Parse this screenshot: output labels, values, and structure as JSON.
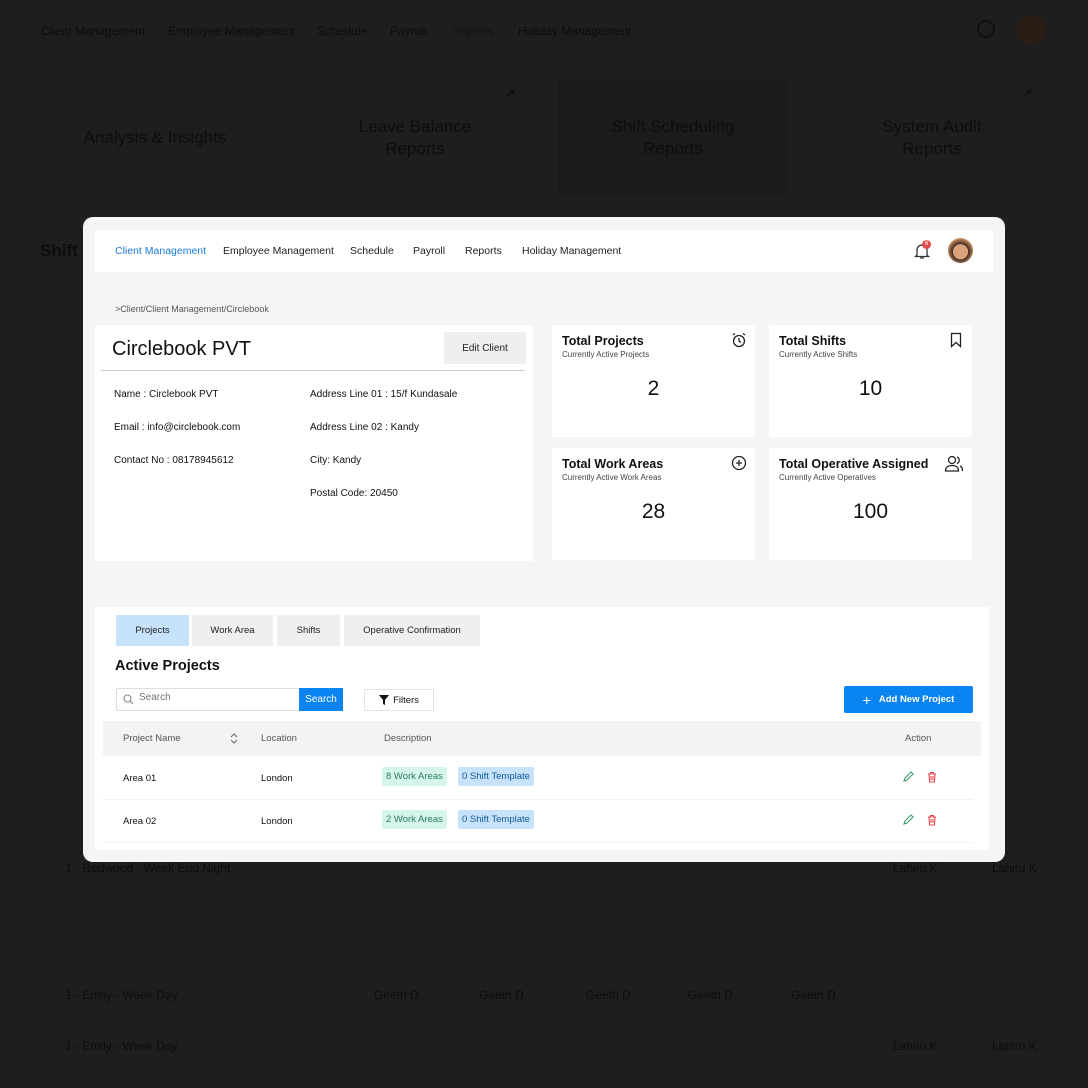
{
  "background": {
    "nav": [
      "Client Management",
      "Employee Management",
      "Schedule",
      "Payroll",
      "Reports",
      "Holiday Management"
    ],
    "report_cards": [
      "Analysis & Insights",
      "Leave Balance Reports",
      "Shift Scheduling Reports",
      "System Audit Reports"
    ],
    "page_title": "Shift",
    "rows": [
      {
        "label": "1 - Redwood - Week End Night",
        "cells": [
          "-",
          "-",
          "-",
          "-",
          "-",
          "Lahiru K",
          "Lahiru K"
        ]
      },
      {
        "label": "1 - Emily - Week Day",
        "cells": [
          "Geeth D",
          "Geeth D",
          "Geeth D",
          "Geeth D",
          "Geeth D",
          "-",
          "-"
        ]
      },
      {
        "label": "1 - Emily - Week Day",
        "cells": [
          "-",
          "-",
          "-",
          "-",
          "-",
          "Lahiru K",
          "Lahiru K"
        ]
      }
    ]
  },
  "modal": {
    "nav": {
      "items": [
        "Client Management",
        "Employee Management",
        "Schedule",
        "Payroll",
        "Reports",
        "Holiday Management"
      ],
      "active": "Client Management",
      "notification_count": "6"
    },
    "breadcrumb": ">Client/Client Management/Circlebook",
    "client": {
      "name": "Circlebook PVT",
      "edit_label": "Edit Client",
      "fields": {
        "name": "Name : Circlebook PVT",
        "email": "Email : info@circlebook.com",
        "contact": "Contact No : 08178945612",
        "address1": "Address Line 01 : 15/f Kundasale",
        "address2": "Address Line 02 : Kandy",
        "city": "City: Kandy",
        "postal": "Postal Code: 20450"
      }
    },
    "stats": [
      {
        "title": "Total Projects",
        "subtitle": "Currently Active Projects",
        "value": "2",
        "icon": "alarm-clock-icon"
      },
      {
        "title": "Total Shifts",
        "subtitle": "Currently Active Shifts",
        "value": "10",
        "icon": "bookmark-icon"
      },
      {
        "title": "Total Work Areas",
        "subtitle": "Currently Active Work Areas",
        "value": "28",
        "icon": "plus-circle-icon"
      },
      {
        "title": "Total Operative Assigned",
        "subtitle": "Currently Active Operatives",
        "value": "100",
        "icon": "users-icon"
      }
    ],
    "tabs": [
      "Projects",
      "Work Area",
      "Shifts",
      "Operative Confirmation"
    ],
    "active_tab": "Projects",
    "section_title": "Active Projects",
    "search": {
      "placeholder": "Search",
      "button": "Search"
    },
    "filters_label": "Filters",
    "add_label": "Add New Project",
    "table": {
      "headers": [
        "Project Name",
        "Location",
        "Description",
        "Action"
      ],
      "rows": [
        {
          "name": "Area 01",
          "location": "London",
          "work_areas": "8 Work Areas",
          "templates": "0 Shift Template"
        },
        {
          "name": "Area 02",
          "location": "London",
          "work_areas": "2 Work Areas",
          "templates": "0 Shift Template"
        }
      ]
    },
    "colors": {
      "accent": "#0a84f0",
      "active_tab": "#c7e2fb",
      "edit": "#3a9a6a",
      "delete": "#e0464d"
    }
  }
}
